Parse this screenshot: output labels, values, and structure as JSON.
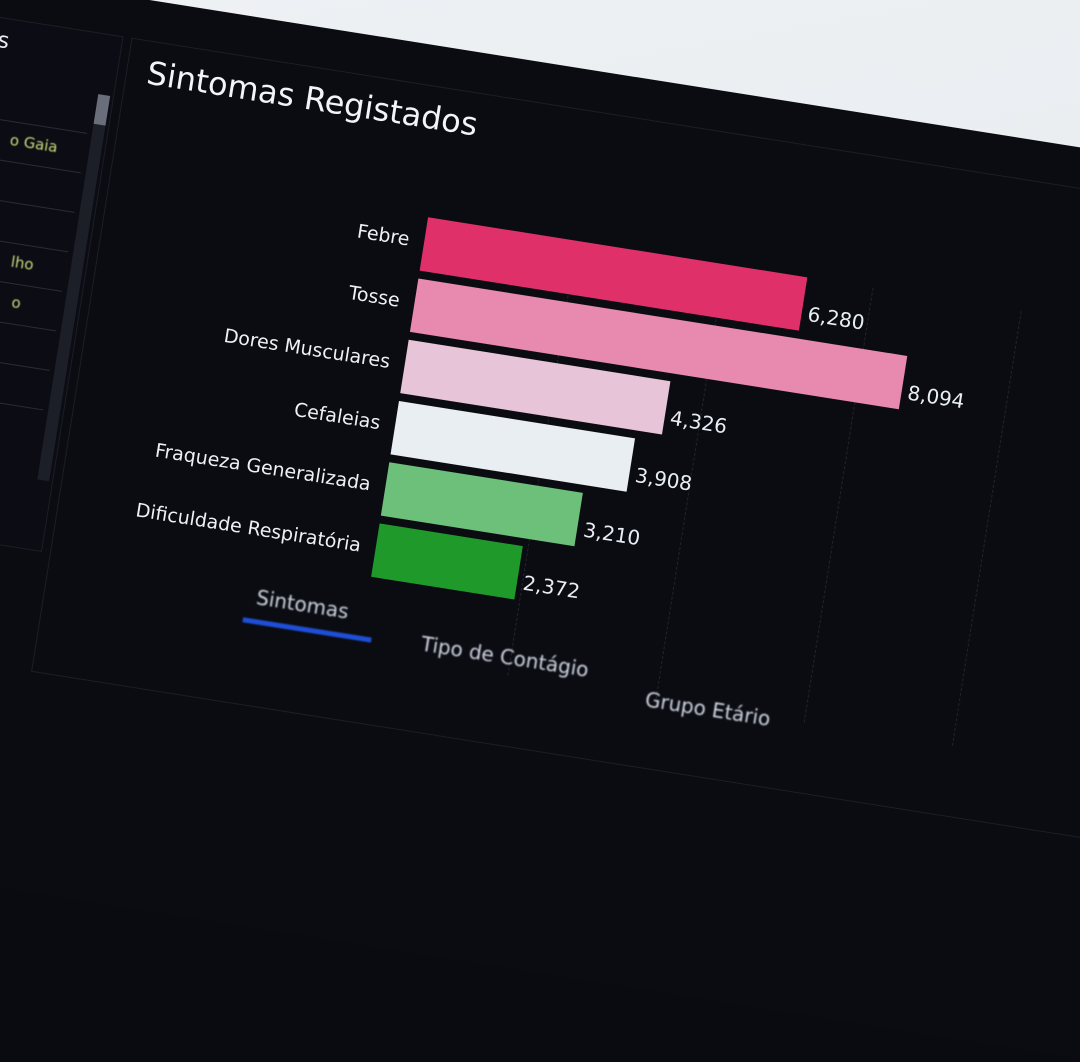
{
  "side_panel": {
    "title_fragment": "mados",
    "rows": [
      "o Gaia",
      "lho",
      "o"
    ]
  },
  "chart_data": {
    "type": "bar",
    "orientation": "horizontal",
    "title": "Sintomas Registados",
    "categories": [
      "Febre",
      "Tosse",
      "Dores Musculares",
      "Cefaleias",
      "Fraqueza Generalizada",
      "Dificuldade Respiratória"
    ],
    "values": [
      6280,
      8094,
      4326,
      3908,
      3210,
      2372
    ],
    "value_labels": [
      "6,280",
      "8,094",
      "4,326",
      "3,908",
      "3,210",
      "2,372"
    ],
    "colors": [
      "#e0306a",
      "#e88ab0",
      "#e8c4d8",
      "#e8eef2",
      "#6cc07a",
      "#1f9a2a"
    ],
    "grid": true
  },
  "tabs": [
    {
      "label": "Sintomas",
      "active": true
    },
    {
      "label": "Tipo de Contágio",
      "active": false
    },
    {
      "label": "Grupo Etário",
      "active": false
    }
  ],
  "accent_color": "#1e4fd8"
}
